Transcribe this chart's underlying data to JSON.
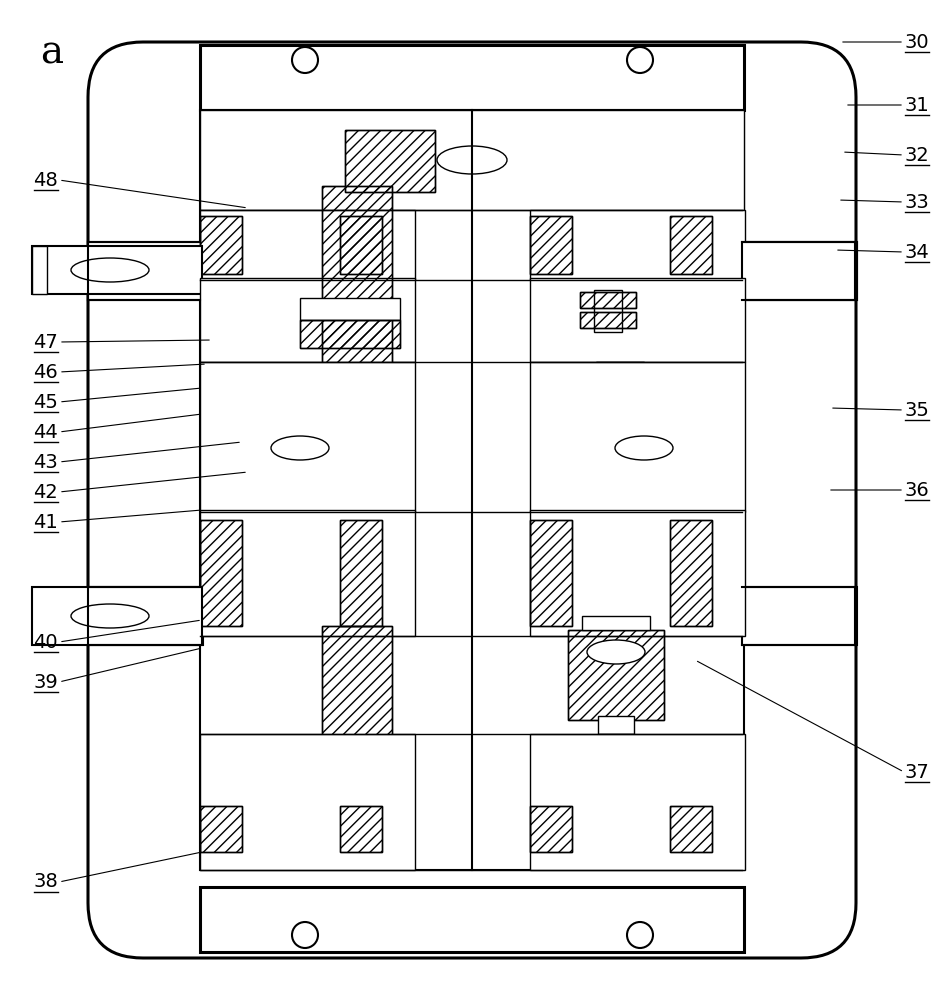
{
  "title": "a",
  "bg": "#ffffff",
  "lc": "#000000",
  "right_labels": [
    [
      "30",
      905,
      958
    ],
    [
      "31",
      905,
      895
    ],
    [
      "32",
      905,
      845
    ],
    [
      "33",
      905,
      798
    ],
    [
      "34",
      905,
      748
    ],
    [
      "35",
      905,
      590
    ],
    [
      "36",
      905,
      510
    ],
    [
      "37",
      905,
      228
    ]
  ],
  "left_labels": [
    [
      "48",
      58,
      820
    ],
    [
      "47",
      58,
      658
    ],
    [
      "46",
      58,
      628
    ],
    [
      "45",
      58,
      598
    ],
    [
      "44",
      58,
      568
    ],
    [
      "43",
      58,
      538
    ],
    [
      "42",
      58,
      508
    ],
    [
      "41",
      58,
      478
    ],
    [
      "40",
      58,
      358
    ],
    [
      "39",
      58,
      318
    ],
    [
      "38",
      58,
      118
    ]
  ]
}
